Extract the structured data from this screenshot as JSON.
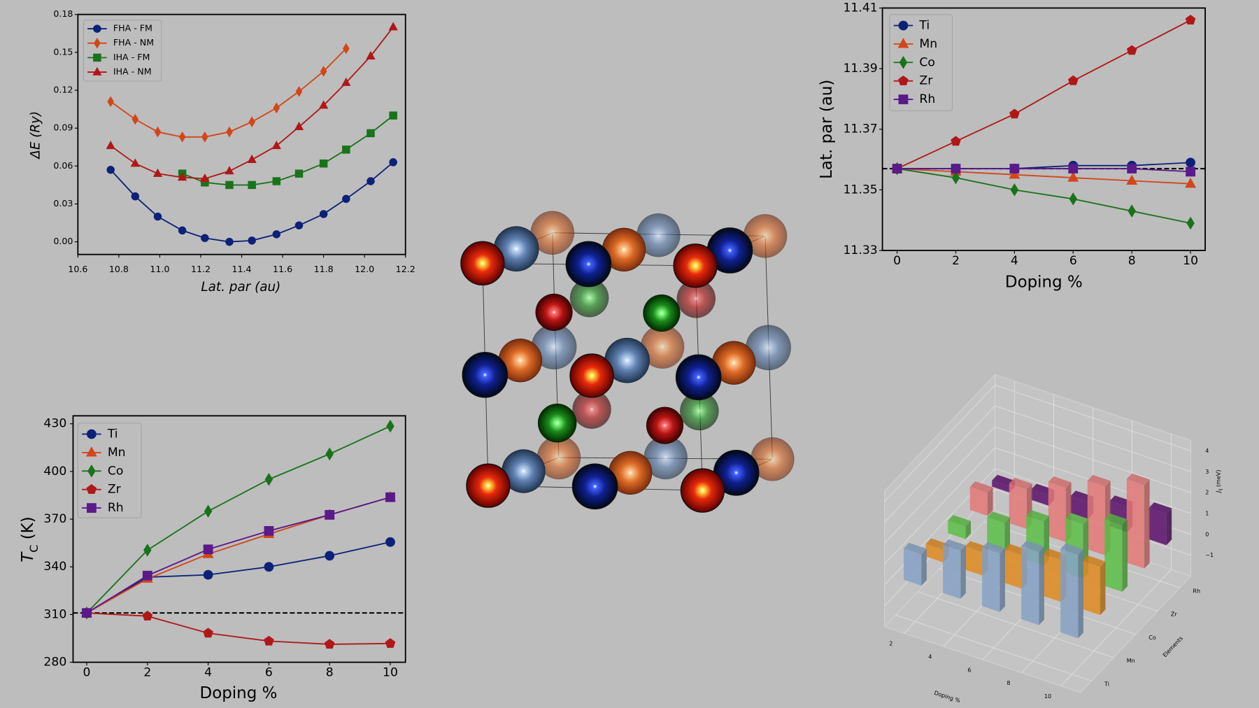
{
  "chart_data": [
    {
      "type": "line",
      "xlabel": "Lat. par (au)",
      "ylabel": "ΔE (Ry)",
      "legend": "upper left",
      "xlim": [
        10.6,
        12.2
      ],
      "ylim": [
        -0.01,
        0.18
      ],
      "xticks": [
        10.6,
        10.8,
        {
          "value": 11.0,
          "label": "11.0"
        },
        11.2,
        11.4,
        11.6,
        11.8,
        {
          "value": 12.0,
          "label": "12.0"
        },
        12.2
      ],
      "yticks": [
        {
          "value": 0,
          "label": "0.00"
        },
        0.03,
        0.06,
        0.09,
        0.12,
        0.15,
        0.18
      ],
      "series": [
        {
          "name": "FHA - FM",
          "color": "#0d2178",
          "marker": "circle",
          "x": [
            10.76,
            10.88,
            10.99,
            11.11,
            11.22,
            11.34,
            11.45,
            11.57,
            11.68,
            11.8,
            11.91,
            12.03,
            12.14
          ],
          "values": [
            0.057,
            0.036,
            0.02,
            0.009,
            0.003,
            0.0,
            0.001,
            0.006,
            0.013,
            0.022,
            0.034,
            0.048,
            0.063
          ]
        },
        {
          "name": "FHA - NM",
          "color": "#d2461a",
          "marker": "diamond",
          "x": [
            10.76,
            10.88,
            10.99,
            11.11,
            11.22,
            11.34,
            11.45,
            11.57,
            11.68,
            11.8,
            11.91
          ],
          "values": [
            0.111,
            0.097,
            0.087,
            0.083,
            0.083,
            0.087,
            0.095,
            0.106,
            0.119,
            0.135,
            0.153
          ]
        },
        {
          "name": "IHA - FM",
          "color": "#1a731a",
          "marker": "square",
          "x": [
            11.11,
            11.22,
            11.34,
            11.45,
            11.57,
            11.68,
            11.8,
            11.91,
            12.03,
            12.14
          ],
          "values": [
            0.054,
            0.047,
            0.045,
            0.045,
            0.048,
            0.054,
            0.062,
            0.073,
            0.086,
            0.1
          ]
        },
        {
          "name": "IHA - NM",
          "color": "#b01818",
          "marker": "triangle",
          "x": [
            10.76,
            10.88,
            10.99,
            11.11,
            11.22,
            11.34,
            11.45,
            11.57,
            11.68,
            11.8,
            11.91,
            12.03,
            12.14
          ],
          "values": [
            0.076,
            0.062,
            0.054,
            0.051,
            0.05,
            0.056,
            0.065,
            0.076,
            0.091,
            0.108,
            0.126,
            0.147,
            0.17
          ]
        }
      ]
    },
    {
      "type": "line",
      "xlabel": "Doping %",
      "ylabel": "Lat. par (au)",
      "legend": "upper left",
      "x": [
        0,
        2,
        4,
        6,
        8,
        10
      ],
      "xlim": [
        -0.5,
        10.5
      ],
      "ylim": [
        11.33,
        11.41
      ],
      "xticks": [
        0,
        2,
        4,
        6,
        8,
        10
      ],
      "yticks": [
        11.33,
        11.35,
        11.37,
        11.39,
        11.41
      ],
      "reference_line": 11.357,
      "series": [
        {
          "name": "Ti",
          "color": "#0d2178",
          "marker": "circle",
          "values": [
            11.357,
            11.357,
            11.357,
            11.358,
            11.358,
            11.359
          ]
        },
        {
          "name": "Mn",
          "color": "#d2461a",
          "marker": "triangle",
          "values": [
            11.357,
            11.356,
            11.355,
            11.354,
            11.353,
            11.352
          ]
        },
        {
          "name": "Co",
          "color": "#1a731a",
          "marker": "diamond",
          "values": [
            11.357,
            11.354,
            11.35,
            11.347,
            11.343,
            11.339
          ]
        },
        {
          "name": "Zr",
          "color": "#b01818",
          "marker": "pentagon",
          "values": [
            11.357,
            11.366,
            11.375,
            11.386,
            11.396,
            11.406
          ]
        },
        {
          "name": "Rh",
          "color": "#5a1a8a",
          "marker": "square",
          "values": [
            11.357,
            11.357,
            11.357,
            11.357,
            11.357,
            11.356
          ]
        }
      ]
    },
    {
      "type": "line",
      "xlabel": "Doping %",
      "ylabel": [
        "T",
        "C",
        " (K)"
      ],
      "legend": "upper left",
      "x": [
        0,
        2,
        4,
        6,
        8,
        10
      ],
      "xlim": [
        -0.45,
        10.5
      ],
      "ylim": [
        280,
        435
      ],
      "xticks": [
        0,
        2,
        4,
        6,
        8,
        10
      ],
      "yticks": [
        280,
        310,
        340,
        370,
        400,
        430
      ],
      "reference_line": 311,
      "series": [
        {
          "name": "Ti",
          "color": "#0d2178",
          "marker": "circle",
          "values": [
            311,
            333.5,
            335,
            340,
            347,
            355.6
          ]
        },
        {
          "name": "Mn",
          "color": "#d2461a",
          "marker": "triangle",
          "values": [
            311,
            332.5,
            348,
            360.6,
            372.7,
            383.8
          ]
        },
        {
          "name": "Co",
          "color": "#1a731a",
          "marker": "diamond",
          "values": [
            311,
            350.5,
            375,
            395,
            411,
            428.5
          ]
        },
        {
          "name": "Zr",
          "color": "#b01818",
          "marker": "pentagon",
          "values": [
            311,
            309,
            298.3,
            293.3,
            291.3,
            291.8
          ]
        },
        {
          "name": "Rh",
          "color": "#5a1a8a",
          "marker": "square",
          "values": [
            311,
            334.5,
            351,
            362.6,
            372.7,
            383.8
          ]
        }
      ]
    },
    {
      "type": "bar3d",
      "xlabel": "Doping %",
      "ylabel": "Elements",
      "zlabel": [
        "J",
        "ij",
        " (meV)"
      ],
      "x": [
        2,
        4,
        6,
        8,
        10
      ],
      "xlim": [
        1,
        11
      ],
      "xticks": [
        2,
        4,
        6,
        8,
        10
      ],
      "categories": [
        "Ti",
        "Mn",
        "Co",
        "Zr",
        "Rh"
      ],
      "zlim": [
        -2,
        4.5
      ],
      "zticks": [
        {
          "value": -1,
          "label": "−1"
        },
        0,
        1,
        2,
        3,
        4
      ],
      "series": [
        {
          "name": "Ti",
          "color": "#86a2c6",
          "values": [
            1.5,
            2.3,
            2.8,
            3.5,
            4.0
          ]
        },
        {
          "name": "Mn",
          "color": "#e08a1e",
          "values": [
            0.6,
            1.1,
            1.6,
            2.0,
            2.3
          ]
        },
        {
          "name": "Co",
          "color": "#5cc046",
          "values": [
            0.6,
            1.4,
            2.1,
            2.6,
            3.2
          ]
        },
        {
          "name": "Zr",
          "color": "#e47878",
          "values": [
            1.1,
            1.9,
            2.6,
            3.3,
            4.0
          ]
        },
        {
          "name": "Rh",
          "color": "#5c106c",
          "values": [
            0.3,
            0.5,
            0.8,
            1.2,
            1.5
          ]
        }
      ]
    }
  ]
}
